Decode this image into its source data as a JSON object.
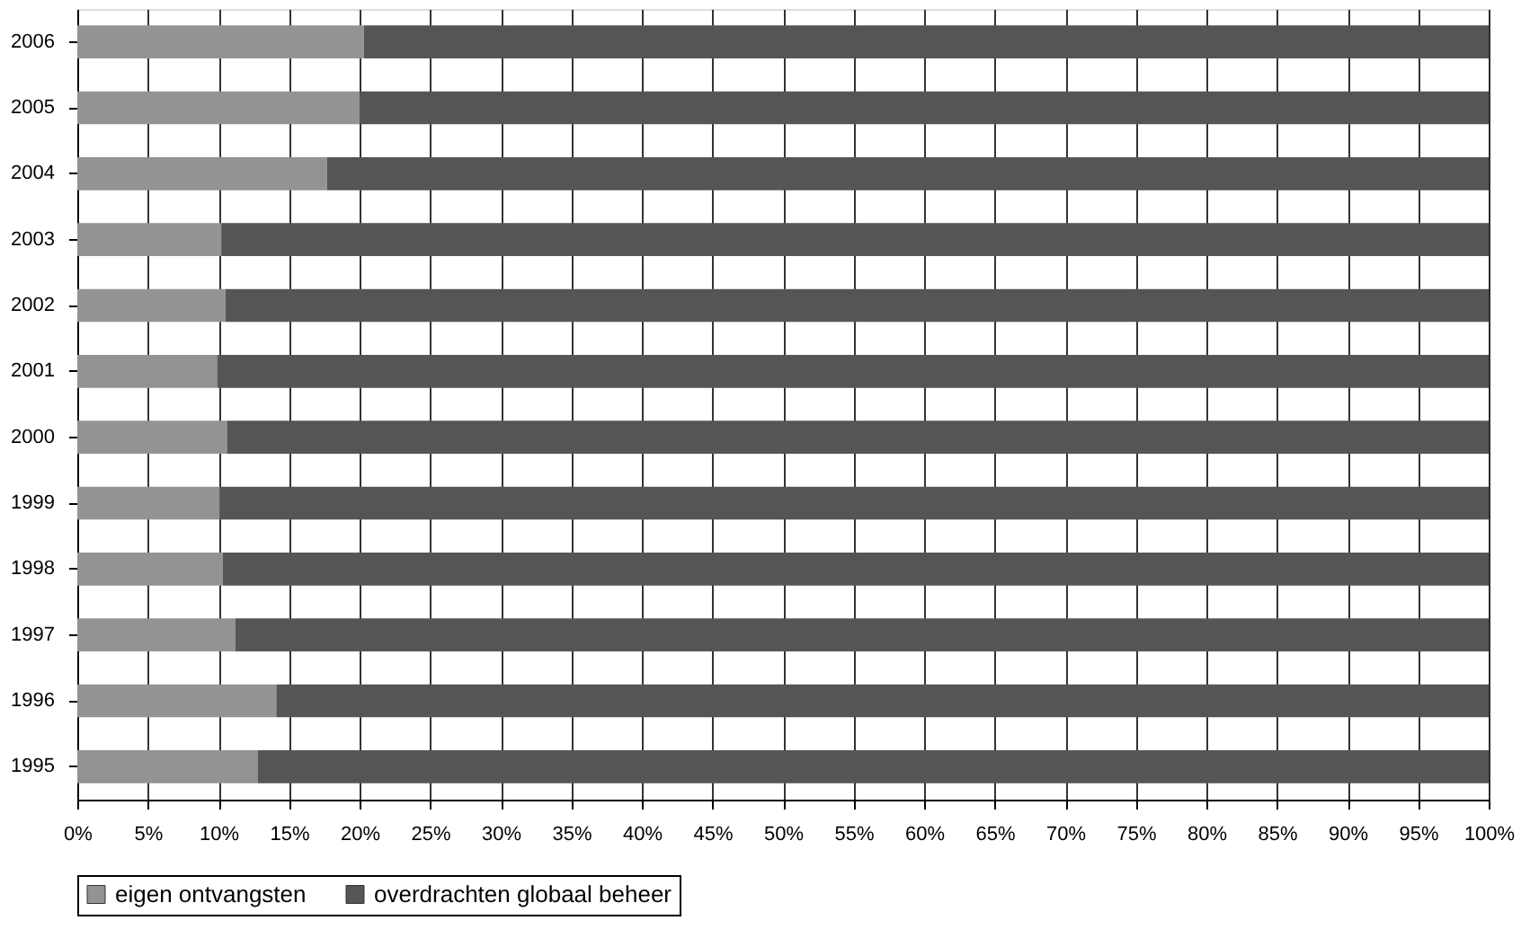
{
  "chart_data": {
    "type": "bar",
    "orientation": "horizontal",
    "stacked": true,
    "categories": [
      "2006",
      "2005",
      "2004",
      "2003",
      "2002",
      "2001",
      "2000",
      "1999",
      "1998",
      "1997",
      "1996",
      "1995"
    ],
    "series": [
      {
        "name": "eigen ontvangsten",
        "color": "#939393",
        "values": [
          20.3,
          20.0,
          17.7,
          10.2,
          10.5,
          9.9,
          10.6,
          10.1,
          10.3,
          11.2,
          14.1,
          12.8
        ]
      },
      {
        "name": "overdrachten globaal beheer",
        "color": "#555555",
        "values": [
          79.7,
          80.0,
          82.3,
          89.8,
          89.5,
          90.1,
          89.4,
          89.9,
          89.7,
          88.8,
          85.9,
          87.2
        ]
      }
    ],
    "xlim": [
      0,
      100
    ],
    "xticks": [
      {
        "value": 0,
        "label": "0%"
      },
      {
        "value": 5,
        "label": "5%"
      },
      {
        "value": 10,
        "label": "10%"
      },
      {
        "value": 15,
        "label": "15%"
      },
      {
        "value": 20,
        "label": "20%"
      },
      {
        "value": 25,
        "label": "25%"
      },
      {
        "value": 30,
        "label": "30%"
      },
      {
        "value": 35,
        "label": "35%"
      },
      {
        "value": 40,
        "label": "40%"
      },
      {
        "value": 45,
        "label": "45%"
      },
      {
        "value": 50,
        "label": "50%"
      },
      {
        "value": 55,
        "label": "55%"
      },
      {
        "value": 60,
        "label": "60%"
      },
      {
        "value": 65,
        "label": "65%"
      },
      {
        "value": 70,
        "label": "70%"
      },
      {
        "value": 75,
        "label": "75%"
      },
      {
        "value": 80,
        "label": "80%"
      },
      {
        "value": 85,
        "label": "85%"
      },
      {
        "value": 90,
        "label": "90%"
      },
      {
        "value": 95,
        "label": "95%"
      },
      {
        "value": 100,
        "label": "100%"
      }
    ],
    "grid": "x",
    "legend": "bottom"
  }
}
